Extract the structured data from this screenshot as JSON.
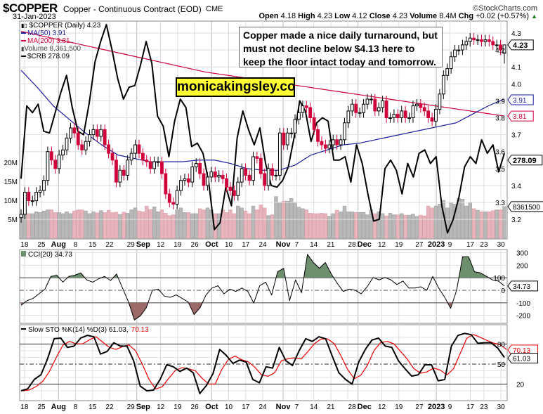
{
  "header": {
    "symbol": "$COPPER",
    "name": "Copper - Continuous Contract (EOD)",
    "exchange": "CME",
    "copyright": "©StockCharts.com",
    "date": "31-Jan-2023",
    "open_label": "Open",
    "open": "4.18",
    "high_label": "High",
    "high": "4.23",
    "low_label": "Low",
    "low": "4.12",
    "close_label": "Close",
    "close": "4.23",
    "volume_label": "Volume",
    "volume": "8.4M",
    "chg_label": "Chg",
    "chg": "+0.02 (+0.57%)",
    "chg_icon": "up-triangle-icon"
  },
  "legend": {
    "price": "$COPPER (Daily) 4.23",
    "ma50": "MA(50) 3.91",
    "ma200": "MA(200) 3.81",
    "volume": "Volume 8,361,500",
    "crb": "$CRB 278.09"
  },
  "annotation": {
    "lines": [
      "Copper made a nice daily turnaround, but",
      "must not decline below $4.13 here to",
      "keep the floor intact today and tomorrow."
    ]
  },
  "brand": "monicakingsley.co",
  "colors": {
    "up": "#000000",
    "down": "#d0003a",
    "ma50": "#1a1aa0",
    "ma200": "#d0003a",
    "volume_up": "#b8b8b8",
    "volume_down": "#e8b4bc",
    "cci_pos": "#6e8f6e",
    "cci_neg": "#9b6a68",
    "sto_d": "#ee0000"
  },
  "chart_data": [
    {
      "type": "candlestick",
      "panel": "price",
      "period": "Daily",
      "y_right_ticks": [
        "4.3",
        "4.2",
        "4.1",
        "4.0",
        "3.9",
        "3.8",
        "3.7",
        "3.6",
        "3.5",
        "3.4",
        "3.3",
        "3.2"
      ],
      "ylim": [
        3.08,
        4.38
      ],
      "volume_ticks": [
        "20M",
        "15M",
        "10M",
        "5M"
      ],
      "last_tags": {
        "price": "4.23",
        "ma50": "3.91",
        "ma200": "3.81",
        "crb": "278.09",
        "volume": "8361500"
      },
      "closes": [
        3.23,
        3.36,
        3.31,
        3.31,
        3.36,
        3.37,
        3.43,
        3.6,
        3.55,
        3.5,
        3.58,
        3.61,
        3.68,
        3.74,
        3.71,
        3.64,
        3.61,
        3.66,
        3.7,
        3.73,
        3.69,
        3.73,
        3.64,
        3.59,
        3.55,
        3.42,
        3.49,
        3.46,
        3.55,
        3.59,
        3.64,
        3.59,
        3.55,
        3.54,
        3.5,
        3.54,
        3.54,
        3.47,
        3.35,
        3.3,
        3.29,
        3.37,
        3.43,
        3.44,
        3.42,
        3.51,
        3.53,
        3.47,
        3.4,
        3.45,
        3.48,
        3.45,
        3.46,
        3.44,
        3.39,
        3.37,
        3.34,
        3.42,
        3.5,
        3.46,
        3.43,
        3.57,
        3.56,
        3.47,
        3.4,
        3.5,
        3.46,
        3.46,
        3.71,
        3.64,
        3.71,
        3.71,
        3.79,
        3.83,
        3.87,
        3.86,
        3.8,
        3.73,
        3.66,
        3.64,
        3.62,
        3.64,
        3.67,
        3.64,
        3.67,
        3.77,
        3.84,
        3.88,
        3.83,
        3.83,
        3.88,
        3.91,
        3.91,
        3.84,
        3.86,
        3.9,
        3.8,
        3.8,
        3.82,
        3.8,
        3.84,
        3.8,
        3.8,
        3.87,
        3.88,
        3.86,
        3.84,
        3.8,
        3.78,
        3.85,
        3.94,
        4.05,
        4.09,
        4.16,
        4.2,
        4.2,
        4.23,
        4.25,
        4.27,
        4.26,
        4.26,
        4.25,
        4.26,
        4.25,
        4.23,
        4.23,
        4.2,
        4.23
      ],
      "last_open": 4.18,
      "last_high": 4.23,
      "last_low": 4.12,
      "volume_millions": [
        6,
        7.5,
        6.5,
        6.5,
        7,
        6.8,
        7.2,
        7.5,
        7.5,
        6.8,
        6.8,
        6.5,
        7,
        6.5,
        7.2,
        7.5,
        7.5,
        7.2,
        6.5,
        7.0,
        6.7,
        7.3,
        6.8,
        7.4,
        6.8,
        6.9,
        6.3,
        6.9,
        6.6,
        7.5,
        8,
        7.2,
        7,
        8.5,
        7.6,
        8.3,
        7,
        7.5,
        6.6,
        6,
        6.2,
        7.5,
        8,
        6.8,
        6.8,
        6.5,
        6.5,
        7.8,
        7.5,
        8,
        7.5,
        6.5,
        6.5,
        7.5,
        6.8,
        7.5,
        6.5,
        8.5,
        8,
        7.2,
        6.5,
        8.5,
        7.5,
        8.8,
        8,
        6,
        6.2,
        11,
        9.5,
        9.8,
        9.8,
        10.5,
        9.5,
        8.2,
        7.8,
        7.5,
        6.6,
        6.5,
        6.5,
        6.6,
        6.5,
        5.8,
        6.5,
        7.4,
        7,
        8.5,
        7,
        7,
        6.8,
        6.8,
        6.8,
        6.2,
        7.5,
        6.5,
        7,
        6.5,
        5.9,
        6.6,
        6.2,
        6.2,
        6.5,
        6.1,
        6.1,
        6.4,
        5.8,
        6.1,
        5.9,
        8.5,
        8,
        8.5,
        9,
        10,
        8,
        9.5,
        9,
        10.5,
        10.3,
        8.5,
        9.5,
        7.8,
        7.4,
        7,
        7,
        7,
        7.3,
        7.5,
        7.5,
        8.36
      ],
      "ma50": [
        4.08,
        3.98,
        3.87,
        3.79,
        3.71,
        3.64,
        3.58,
        3.56,
        3.54,
        3.54,
        3.54,
        3.55,
        3.55,
        3.53,
        3.5,
        3.49,
        3.49,
        3.52,
        3.58,
        3.61,
        3.64,
        3.65,
        3.67,
        3.69,
        3.71,
        3.73,
        3.75,
        3.77,
        3.82,
        3.87,
        3.91
      ],
      "ma200": [
        4.31,
        4.28,
        4.25,
        4.22,
        4.19,
        4.16,
        4.13,
        4.1,
        4.07,
        4.05,
        4.03,
        4.01,
        3.99,
        3.97,
        3.95,
        3.93,
        3.91,
        3.89,
        3.87,
        3.85,
        3.83,
        3.81
      ],
      "crb_on_price_axis": [
        3.44,
        3.87,
        3.83,
        3.88,
        3.72,
        3.71,
        3.83,
        3.95,
        4.05,
        3.86,
        3.72,
        3.7,
        3.89,
        4.13,
        4.25,
        4.35,
        4.2,
        4.03,
        3.91,
        3.98,
        3.99,
        4.11,
        4.25,
        4.12,
        3.81,
        3.75,
        3.57,
        3.78,
        3.91,
        3.86,
        3.63,
        3.65,
        3.59,
        3.42,
        3.14,
        3.18,
        3.39,
        3.28,
        3.68,
        3.84,
        3.73,
        3.64,
        3.74,
        3.53,
        3.4,
        3.39,
        3.43,
        3.51,
        3.68,
        3.9,
        3.84,
        3.66,
        3.77,
        3.8,
        3.78,
        3.55,
        3.55,
        3.57,
        3.42,
        3.64,
        3.53,
        3.35,
        3.19,
        3.2,
        3.5,
        3.55,
        3.49,
        3.35,
        3.53,
        3.45,
        3.59,
        3.61,
        3.53,
        3.57,
        3.28,
        3.12,
        3.2,
        3.33,
        3.51,
        3.57,
        3.53,
        3.67,
        3.59,
        3.64,
        3.48,
        3.59
      ]
    },
    {
      "type": "area",
      "panel": "cci",
      "label": "CCI(20) 34.73",
      "last_tag": "34.73",
      "y_ticks": [
        "300",
        "200",
        "100",
        "0",
        "-100",
        "-200"
      ],
      "ylim": [
        -280,
        330
      ],
      "values": [
        -120,
        -83,
        -65,
        -28,
        9,
        111,
        120,
        65,
        111,
        120,
        139,
        83,
        65,
        92,
        111,
        78,
        130,
        18,
        -93,
        -237,
        -204,
        -139,
        0,
        9,
        -46,
        -56,
        -37,
        -65,
        -93,
        -194,
        -139,
        -37,
        18,
        37,
        -28,
        9,
        -9,
        18,
        -9,
        -102,
        37,
        65,
        -37,
        148,
        176,
        -83,
        83,
        -19,
        287,
        222,
        176,
        222,
        130,
        55,
        -9,
        9,
        0,
        -28,
        28,
        102,
        83,
        102,
        83,
        46,
        74,
        18,
        18,
        28,
        0,
        111,
        18,
        -56,
        -144,
        0,
        268,
        268,
        148,
        139,
        111,
        83,
        74,
        35
      ]
    },
    {
      "type": "line",
      "panel": "stochastic",
      "label_prefix": "Slow STO %K(14) %D(3) 61.03,",
      "label_d": "70.13",
      "last_k": "61.03",
      "last_d": "70.13",
      "y_ticks": [
        "80",
        "50",
        "20"
      ],
      "ylim": [
        0,
        100
      ],
      "k_values": [
        10,
        13,
        27,
        34,
        58,
        88,
        89,
        75,
        77,
        89,
        93,
        91,
        65,
        69,
        82,
        77,
        77,
        55,
        17,
        10,
        11,
        27,
        49,
        46,
        39,
        44,
        37,
        6,
        18,
        36,
        72,
        63,
        51,
        56,
        53,
        27,
        22,
        46,
        44,
        75,
        55,
        48,
        70,
        88,
        84,
        91,
        88,
        62,
        37,
        27,
        20,
        53,
        72,
        86,
        89,
        77,
        75,
        55,
        43,
        32,
        34,
        49,
        49,
        25,
        27,
        77,
        93,
        96,
        94,
        81,
        82,
        82,
        74,
        60
      ]
    }
  ],
  "x_axis": {
    "start_date": "2022-07-15",
    "end_date": "2023-01-31",
    "ticks": [
      {
        "label": "18",
        "date": "2022-07-18",
        "major": false
      },
      {
        "label": "25",
        "date": "2022-07-25",
        "major": false
      },
      {
        "label": "Aug",
        "date": "2022-08-01",
        "major": true
      },
      {
        "label": "8",
        "date": "2022-08-08",
        "major": false
      },
      {
        "label": "15",
        "date": "2022-08-15",
        "major": false
      },
      {
        "label": "22",
        "date": "2022-08-22",
        "major": false
      },
      {
        "label": "29",
        "date": "2022-08-29",
        "major": false
      },
      {
        "label": "Sep",
        "date": "2022-09-01",
        "major": true
      },
      {
        "label": "12",
        "date": "2022-09-12",
        "major": false
      },
      {
        "label": "19",
        "date": "2022-09-19",
        "major": false
      },
      {
        "label": "26",
        "date": "2022-09-26",
        "major": false
      },
      {
        "label": "Oct",
        "date": "2022-10-03",
        "major": true
      },
      {
        "label": "10",
        "date": "2022-10-10",
        "major": false
      },
      {
        "label": "17",
        "date": "2022-10-17",
        "major": false
      },
      {
        "label": "24",
        "date": "2022-10-24",
        "major": false
      },
      {
        "label": "Nov",
        "date": "2022-11-01",
        "major": true
      },
      {
        "label": "7",
        "date": "2022-11-07",
        "major": false
      },
      {
        "label": "14",
        "date": "2022-11-14",
        "major": false
      },
      {
        "label": "21",
        "date": "2022-11-21",
        "major": false
      },
      {
        "label": "28",
        "date": "2022-11-28",
        "major": false
      },
      {
        "label": "Dec",
        "date": "2022-12-01",
        "major": true
      },
      {
        "label": "12",
        "date": "2022-12-12",
        "major": false
      },
      {
        "label": "19",
        "date": "2022-12-19",
        "major": false
      },
      {
        "label": "27",
        "date": "2022-12-27",
        "major": false
      },
      {
        "label": "2023",
        "date": "2023-01-03",
        "major": true
      },
      {
        "label": "9",
        "date": "2023-01-09",
        "major": false
      },
      {
        "label": "17",
        "date": "2023-01-17",
        "major": false
      },
      {
        "label": "23",
        "date": "2023-01-23",
        "major": false
      },
      {
        "label": "30",
        "date": "2023-01-30",
        "major": false
      }
    ]
  }
}
